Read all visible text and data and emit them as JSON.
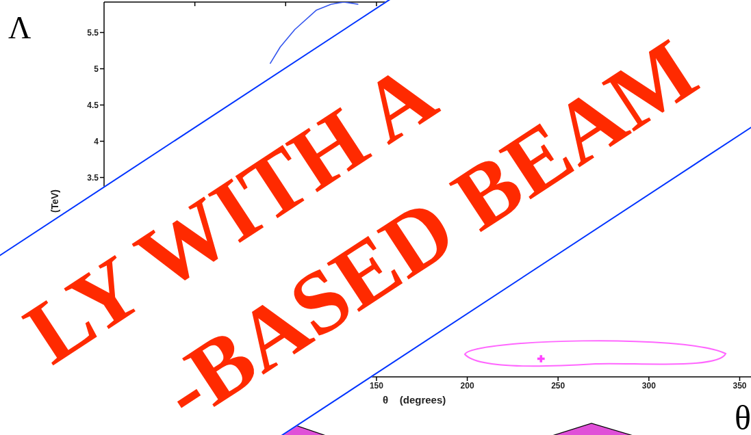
{
  "chart_data": {
    "type": "line",
    "xlabel": "θ    (degrees)",
    "ylabel": "(TeV)",
    "xlim": [
      0,
      360
    ],
    "ylim": [
      0.75,
      5.92
    ],
    "xticks": [
      {
        "value": 50,
        "label": null
      },
      {
        "value": 100,
        "label": null
      },
      150,
      200,
      250,
      300,
      350
    ],
    "yticks": [
      3.5,
      4,
      4.5,
      5,
      5.5
    ],
    "grid": false,
    "legend": false,
    "annotations": [
      "Λ",
      "θ",
      "LY WITH A",
      "-BASED BEAM"
    ],
    "series": [
      {
        "color": "#3355ee",
        "marker": "none",
        "x": [
          91.4,
          97,
          105,
          117,
          125,
          132,
          140
        ],
        "values": [
          5.07,
          5.3,
          5.54,
          5.81,
          5.89,
          5.92,
          5.89
        ]
      },
      {
        "type": "scatter",
        "color": "#ff44ff",
        "marker": "cross",
        "x": [
          240.6
        ],
        "values": [
          1.0
        ]
      }
    ]
  }
}
